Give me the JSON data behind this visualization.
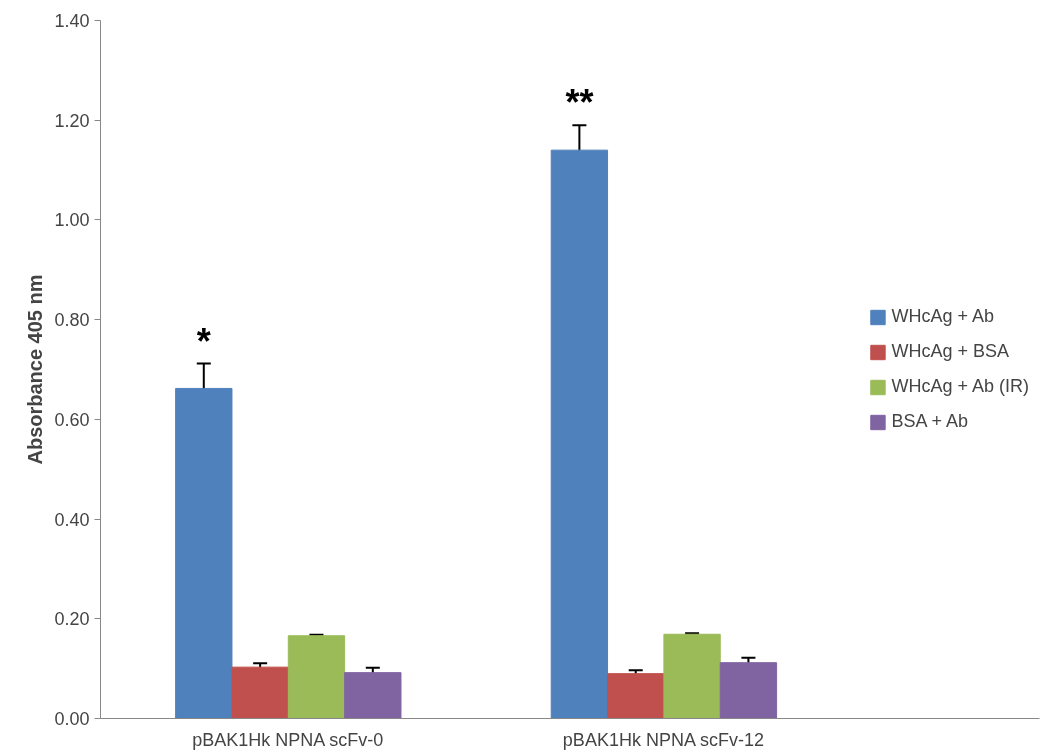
{
  "chart_data": {
    "type": "bar",
    "ylabel": "Absorbance 405 nm",
    "categories": [
      "pBAK1Hk NPNA scFv-0",
      "pBAK1Hk NPNA scFv-12"
    ],
    "series": [
      {
        "name": "WHcAg + Ab",
        "color": "#4f81bd",
        "values": [
          0.662,
          1.14
        ],
        "errors": [
          0.05,
          0.05
        ]
      },
      {
        "name": "WHcAg + BSA",
        "color": "#c0504d",
        "values": [
          0.103,
          0.09
        ],
        "errors": [
          0.008,
          0.007
        ]
      },
      {
        "name": "WHcAg + Ab (IR)",
        "color": "#9bbb59",
        "values": [
          0.166,
          0.169
        ],
        "errors": [
          0.002,
          0.002
        ]
      },
      {
        "name": "BSA + Ab",
        "color": "#8064a2",
        "values": [
          0.092,
          0.112
        ],
        "errors": [
          0.01,
          0.01
        ]
      }
    ],
    "annotations": [
      "*",
      "**"
    ],
    "ylim": [
      0,
      1.4
    ],
    "yticks": [
      {
        "value": 0,
        "label": "0.00"
      },
      {
        "value": 0.2,
        "label": "0.20"
      },
      {
        "value": 0.4,
        "label": "0.40"
      },
      {
        "value": 0.6,
        "label": "0.60"
      },
      {
        "value": 0.8,
        "label": "0.80"
      },
      {
        "value": 1.0,
        "label": "1.00"
      },
      {
        "value": 1.2,
        "label": "1.20"
      },
      {
        "value": 1.4,
        "label": "1.40"
      }
    ],
    "grid": false,
    "legend": "right"
  }
}
